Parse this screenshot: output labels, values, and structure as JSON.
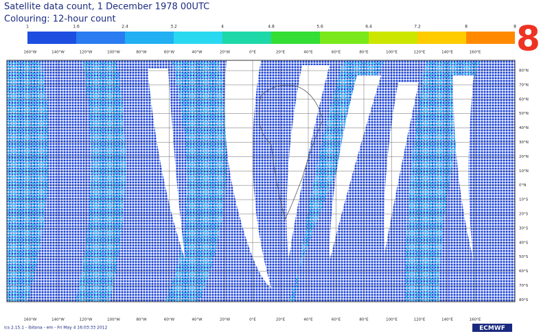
{
  "header": {
    "title": "Satellite data count, 1 December 1978 00UTC",
    "subtitle": "Colouring: 12-hour count",
    "badge": "8"
  },
  "colorbar": {
    "labels": [
      "1",
      "1.6",
      "2.4",
      "3.2",
      "4",
      "4.8",
      "5.6",
      "6.4",
      "7.2",
      "8",
      "8"
    ],
    "colors": [
      "#1d4ee0",
      "#2a7cf0",
      "#22b0f2",
      "#2ad8f0",
      "#1ed8a8",
      "#34de34",
      "#7ae81a",
      "#cce600",
      "#ffcc00",
      "#ff8a00"
    ]
  },
  "map": {
    "lon_labels": [
      "160°W",
      "140°W",
      "120°W",
      "100°W",
      "80°W",
      "60°W",
      "40°W",
      "20°W",
      "0°E",
      "20°E",
      "40°E",
      "60°E",
      "80°E",
      "100°E",
      "120°E",
      "140°E",
      "160°E"
    ],
    "lat_labels": [
      "80°N",
      "70°N",
      "60°N",
      "50°N",
      "40°N",
      "30°N",
      "20°N",
      "10°N",
      "0°N",
      "10°S",
      "20°S",
      "30°S",
      "40°S",
      "50°S",
      "60°S",
      "70°S",
      "80°S"
    ]
  },
  "footer": {
    "info": "ics 2.15.1 - ibitona - em - Fri May 4 16:03:33 2012",
    "logo": "ECMWF"
  }
}
